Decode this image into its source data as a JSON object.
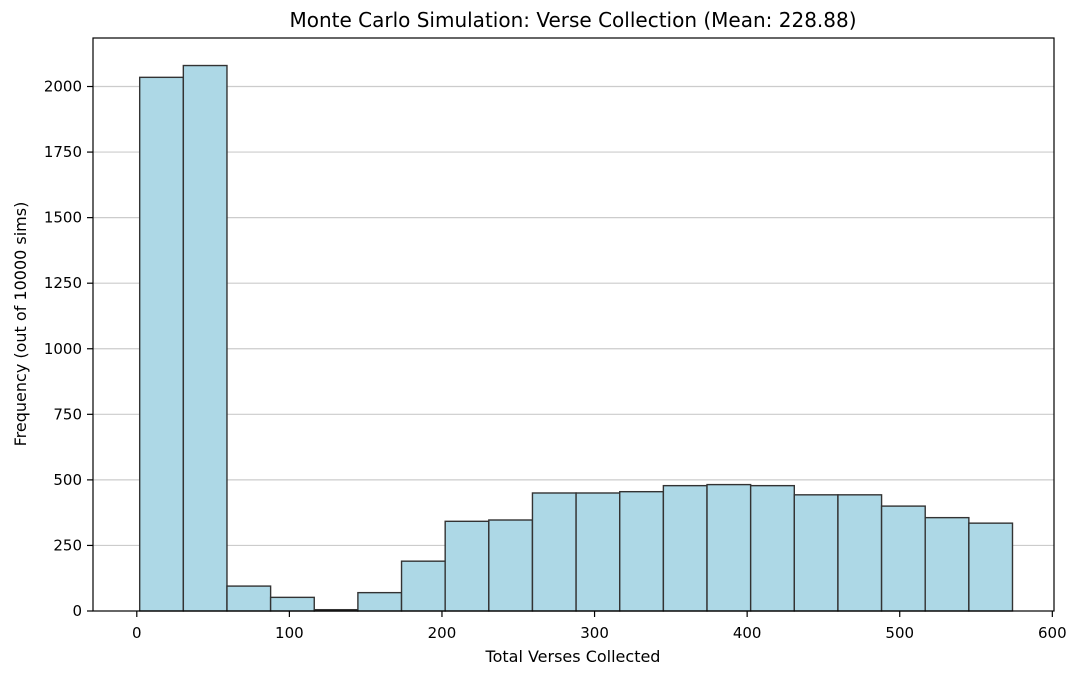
{
  "chart_data": {
    "type": "bar",
    "title": "Monte Carlo Simulation: Verse Collection (Mean: 228.88)",
    "xlabel": "Total Verses Collected",
    "ylabel": "Frequency (out of 10000 sims)",
    "xlim": [
      -28.7,
      601.1
    ],
    "ylim": [
      0,
      2185
    ],
    "x_ticks": [
      0,
      100,
      200,
      300,
      400,
      500,
      600
    ],
    "y_ticks": [
      0,
      250,
      500,
      750,
      1000,
      1250,
      1500,
      1750,
      2000
    ],
    "grid": "y",
    "bin_edges": [
      1.9,
      30.5,
      59.1,
      87.7,
      116.3,
      144.9,
      173.5,
      202.1,
      230.7,
      259.3,
      287.9,
      316.5,
      345.1,
      373.7,
      402.3,
      430.9,
      459.5,
      488.1,
      516.7,
      545.3,
      573.9
    ],
    "values": [
      2035,
      2080,
      95,
      52,
      5,
      70,
      190,
      342,
      347,
      450,
      450,
      455,
      478,
      482,
      478,
      443,
      443,
      400,
      356,
      335
    ],
    "colors": {
      "bar_fill": "#ADD8E6",
      "bar_stroke": "#333333",
      "grid": "#cccccc",
      "axis": "#000000"
    }
  }
}
